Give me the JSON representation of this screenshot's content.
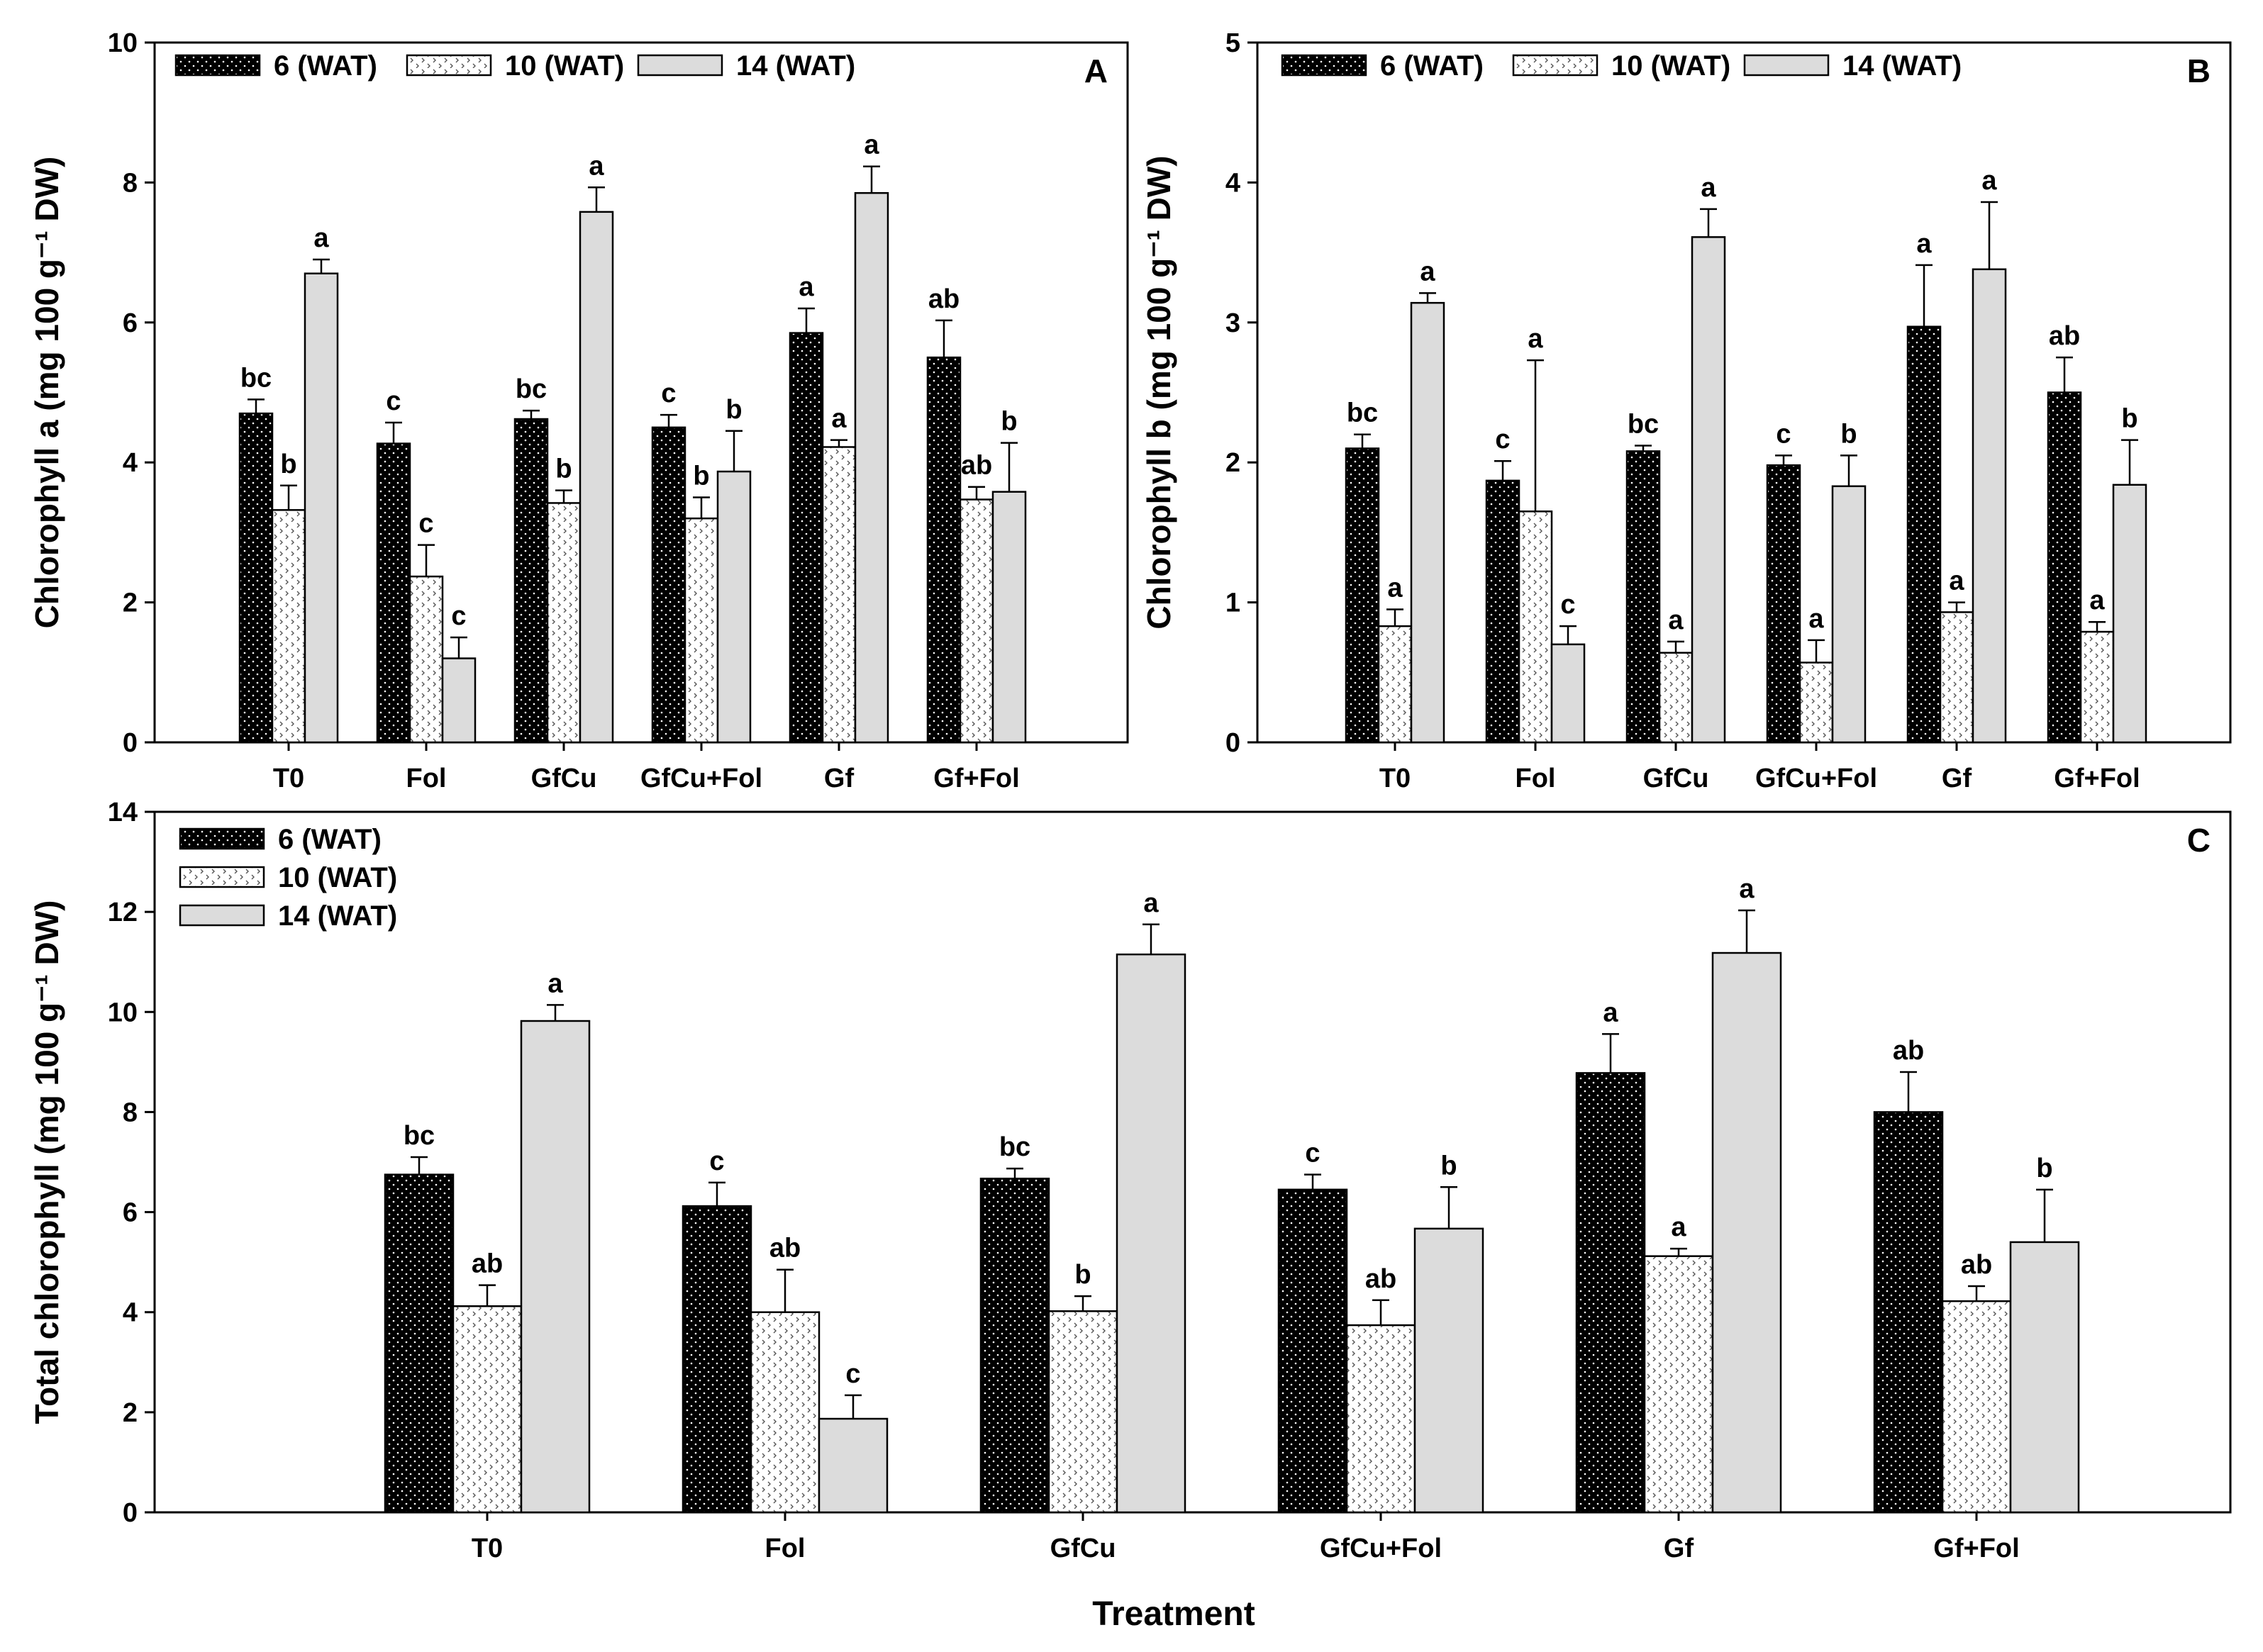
{
  "figure": {
    "x_axis_title": "Treatment",
    "colors": {
      "s6": "#000000",
      "s10": "#ffffff",
      "s14": "#dcdcdc",
      "axis": "#000000"
    }
  },
  "chart_data": [
    {
      "panel": "A",
      "type": "bar",
      "ylabel": "Chlorophyll a (mg 100 g⁻¹ DW)",
      "ylim": [
        0,
        10
      ],
      "yticks": [
        "0",
        "2",
        "4",
        "6",
        "8",
        "10"
      ],
      "categories": [
        "T0",
        "Fol",
        "GfCu",
        "GfCu+Fol",
        "Gf",
        "Gf+Fol"
      ],
      "legend_layout": "row",
      "series": [
        {
          "name": "6 (WAT)",
          "values": [
            4.7,
            4.27,
            4.62,
            4.5,
            5.85,
            5.5
          ],
          "errors": [
            0.2,
            0.3,
            0.12,
            0.18,
            0.35,
            0.53
          ],
          "labels": [
            "bc",
            "c",
            "bc",
            "c",
            "a",
            "ab"
          ]
        },
        {
          "name": "10 (WAT)",
          "values": [
            3.32,
            2.37,
            3.42,
            3.2,
            4.22,
            3.47
          ],
          "errors": [
            0.35,
            0.45,
            0.18,
            0.3,
            0.1,
            0.18
          ],
          "labels": [
            "b",
            "c",
            "b",
            "b",
            "a",
            "ab"
          ]
        },
        {
          "name": "14 (WAT)",
          "values": [
            6.7,
            1.2,
            7.58,
            3.87,
            7.85,
            3.58
          ],
          "errors": [
            0.2,
            0.3,
            0.35,
            0.58,
            0.38,
            0.7
          ],
          "labels": [
            "a",
            "c",
            "a",
            "b",
            "a",
            "b"
          ]
        }
      ]
    },
    {
      "panel": "B",
      "type": "bar",
      "ylabel": "Chlorophyll b (mg 100 g⁻¹ DW)",
      "ylim": [
        0,
        5
      ],
      "yticks": [
        "0",
        "1",
        "2",
        "3",
        "4",
        "5"
      ],
      "categories": [
        "T0",
        "Fol",
        "GfCu",
        "GfCu+Fol",
        "Gf",
        "Gf+Fol"
      ],
      "legend_layout": "row",
      "series": [
        {
          "name": "6 (WAT)",
          "values": [
            2.1,
            1.87,
            2.08,
            1.98,
            2.97,
            2.5
          ],
          "errors": [
            0.1,
            0.14,
            0.04,
            0.07,
            0.44,
            0.25
          ],
          "labels": [
            "bc",
            "c",
            "bc",
            "c",
            "a",
            "ab"
          ]
        },
        {
          "name": "10 (WAT)",
          "values": [
            0.83,
            1.65,
            0.64,
            0.57,
            0.93,
            0.79
          ],
          "errors": [
            0.12,
            1.08,
            0.08,
            0.16,
            0.07,
            0.07
          ],
          "labels": [
            "a",
            "a",
            "a",
            "a",
            "a",
            "a"
          ]
        },
        {
          "name": "14 (WAT)",
          "values": [
            3.14,
            0.7,
            3.61,
            1.83,
            3.38,
            1.84
          ],
          "errors": [
            0.07,
            0.13,
            0.2,
            0.22,
            0.48,
            0.32
          ],
          "labels": [
            "a",
            "c",
            "a",
            "b",
            "a",
            "b"
          ]
        }
      ]
    },
    {
      "panel": "C",
      "type": "bar",
      "ylabel": "Total chlorophyll (mg 100 g⁻¹ DW)",
      "ylim": [
        0,
        14
      ],
      "yticks": [
        "0",
        "2",
        "4",
        "6",
        "8",
        "10",
        "12",
        "14"
      ],
      "categories": [
        "T0",
        "Fol",
        "GfCu",
        "GfCu+Fol",
        "Gf",
        "Gf+Fol"
      ],
      "legend_layout": "column",
      "series": [
        {
          "name": "6 (WAT)",
          "values": [
            6.75,
            6.12,
            6.67,
            6.45,
            8.78,
            8.0
          ],
          "errors": [
            0.35,
            0.47,
            0.2,
            0.3,
            0.78,
            0.8
          ],
          "labels": [
            "bc",
            "c",
            "bc",
            "c",
            "a",
            "ab"
          ]
        },
        {
          "name": "10 (WAT)",
          "values": [
            4.12,
            4.0,
            4.02,
            3.74,
            5.12,
            4.22
          ],
          "errors": [
            0.42,
            0.85,
            0.3,
            0.5,
            0.15,
            0.3
          ],
          "labels": [
            "ab",
            "ab",
            "b",
            "ab",
            "a",
            "ab"
          ]
        },
        {
          "name": "14 (WAT)",
          "values": [
            9.82,
            1.87,
            11.15,
            5.67,
            11.18,
            5.4
          ],
          "errors": [
            0.32,
            0.47,
            0.6,
            0.83,
            0.85,
            1.05
          ],
          "labels": [
            "a",
            "c",
            "a",
            "b",
            "a",
            "b"
          ]
        }
      ]
    }
  ]
}
